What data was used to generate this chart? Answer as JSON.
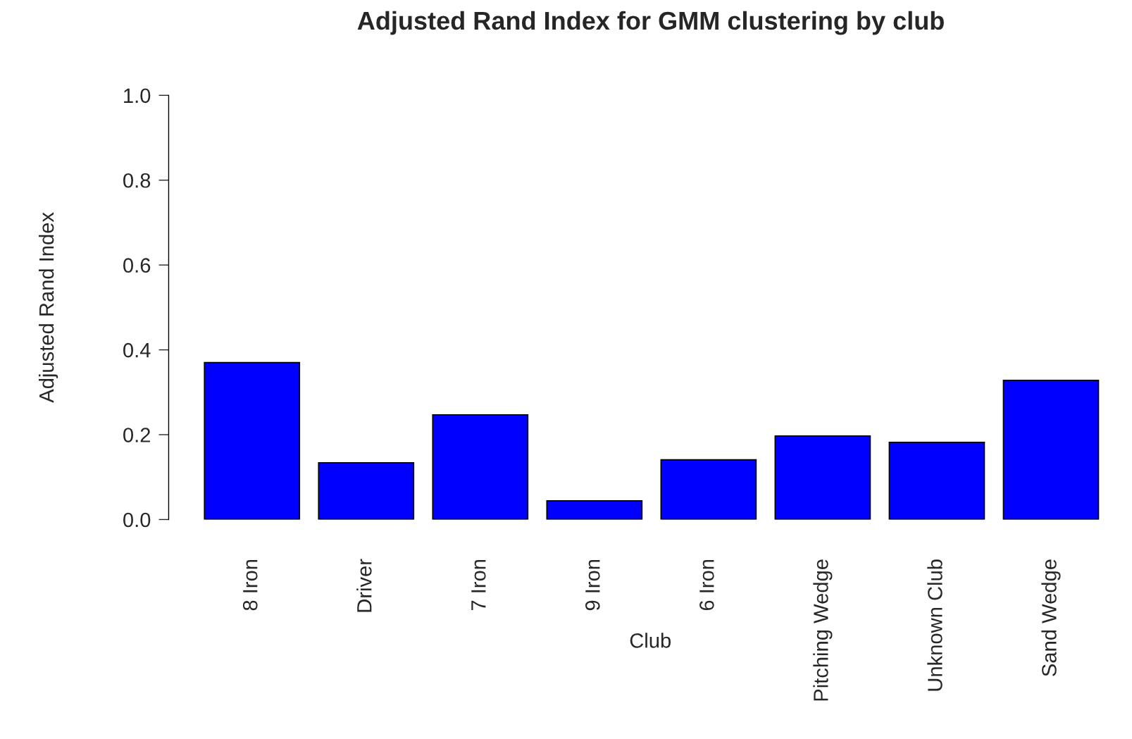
{
  "chart_data": {
    "type": "bar",
    "title": "Adjusted Rand Index for GMM clustering by club",
    "xlabel": "Club",
    "ylabel": "Adjusted Rand Index",
    "categories": [
      "8 Iron",
      "Driver",
      "7 Iron",
      "9 Iron",
      "6 Iron",
      "Pitching Wedge",
      "Unknown Club",
      "Sand Wedge"
    ],
    "values": [
      0.37,
      0.134,
      0.247,
      0.044,
      0.141,
      0.197,
      0.182,
      0.328
    ],
    "color": "#0000ff",
    "ylim": [
      0,
      1
    ],
    "yticks": [
      {
        "value": 0,
        "label": "0.0"
      },
      {
        "value": 0.2,
        "label": "0.2"
      },
      {
        "value": 0.4,
        "label": "0.4"
      },
      {
        "value": 0.6,
        "label": "0.6"
      },
      {
        "value": 0.8,
        "label": "0.8"
      },
      {
        "value": 1,
        "label": "1.0"
      }
    ],
    "grid": false,
    "legend": false
  }
}
